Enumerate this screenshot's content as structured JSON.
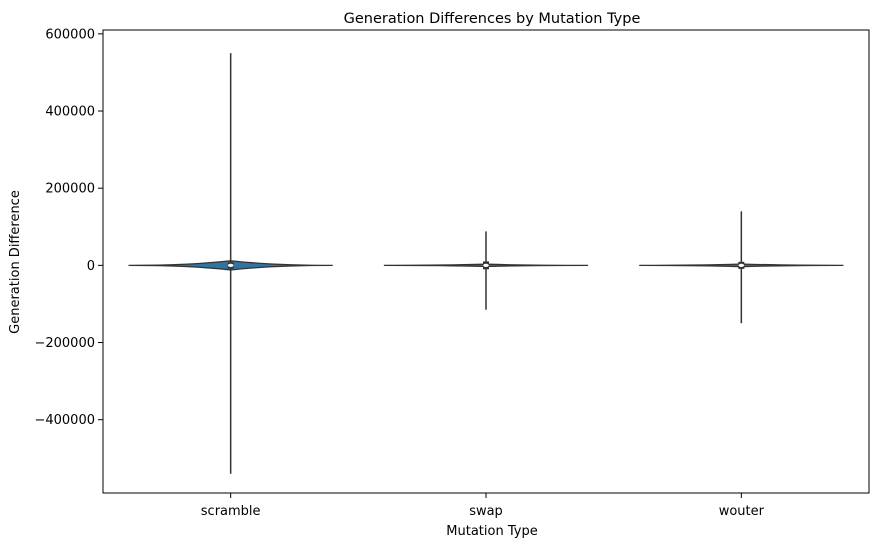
{
  "chart_data": {
    "type": "violin",
    "title": "Generation Differences by Mutation Type",
    "xlabel": "Mutation Type",
    "ylabel": "Generation Difference",
    "categories": [
      "scramble",
      "swap",
      "wouter"
    ],
    "ylim": [
      -590000,
      610000
    ],
    "yticks": [
      -400000,
      -200000,
      0,
      200000,
      400000,
      600000
    ],
    "yticklabels": [
      "−400000",
      "−200000",
      "0",
      "200000",
      "400000",
      "600000"
    ],
    "grid": false,
    "legend": "none",
    "colors": {
      "violin_fill": "#3274a1",
      "line": "#333333",
      "median": "#ffffff"
    },
    "violins": [
      {
        "name": "scramble",
        "min": -540000,
        "max": 550000,
        "q1": -3000,
        "median": 0,
        "q3": 3000,
        "max_density_halfwidth_fraction": 0.5,
        "body_halfheight": 12000
      },
      {
        "name": "swap",
        "min": -115000,
        "max": 88000,
        "q1": -5000,
        "median": 0,
        "q3": 5000,
        "max_density_halfwidth_fraction": 0.5,
        "body_halfheight": 3000
      },
      {
        "name": "wouter",
        "min": -150000,
        "max": 140000,
        "q1": -4000,
        "median": 0,
        "q3": 4000,
        "max_density_halfwidth_fraction": 0.5,
        "body_halfheight": 3500
      }
    ]
  }
}
